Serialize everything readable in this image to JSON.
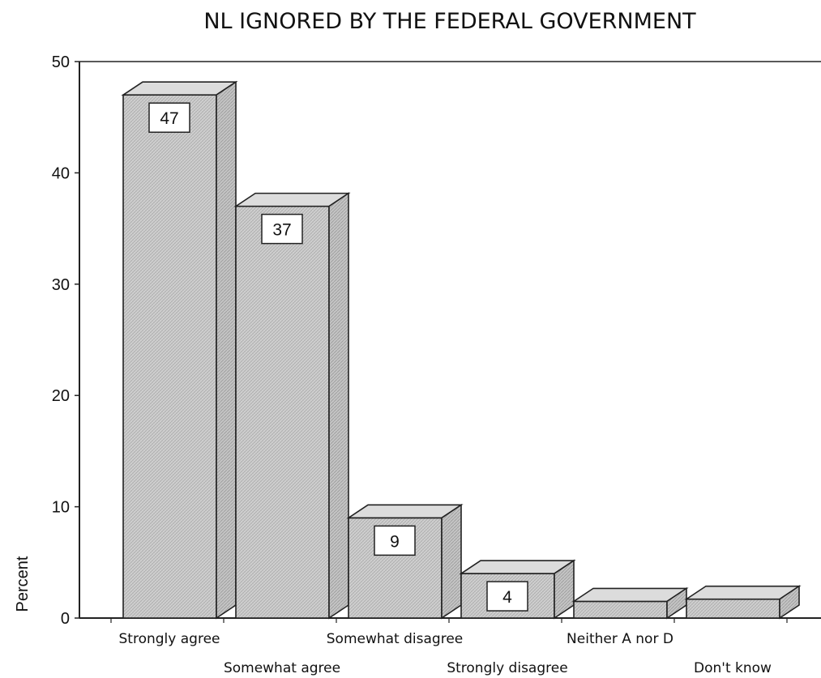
{
  "chart_data": {
    "type": "bar",
    "title": "NL IGNORED BY THE FEDERAL GOVERNMENT",
    "xlabel": "",
    "ylabel": "Percent",
    "ylim": [
      0,
      50
    ],
    "yticks": [
      0,
      10,
      20,
      30,
      40,
      50
    ],
    "grid": false,
    "style": "3d",
    "categories": [
      "Strongly agree",
      "Somewhat agree",
      "Somewhat disagree",
      "Strongly disagree",
      "Neither A nor D",
      "Don't know"
    ],
    "values": [
      47,
      37,
      9,
      4,
      1.5,
      1.7
    ],
    "data_labels": [
      "47",
      "37",
      "9",
      "4",
      "",
      ""
    ],
    "colors": {
      "bar_face": "#cfcfcf",
      "bar_side": "#bdbdbd",
      "bar_top": "#dcdcdc",
      "outline": "#222222"
    }
  }
}
